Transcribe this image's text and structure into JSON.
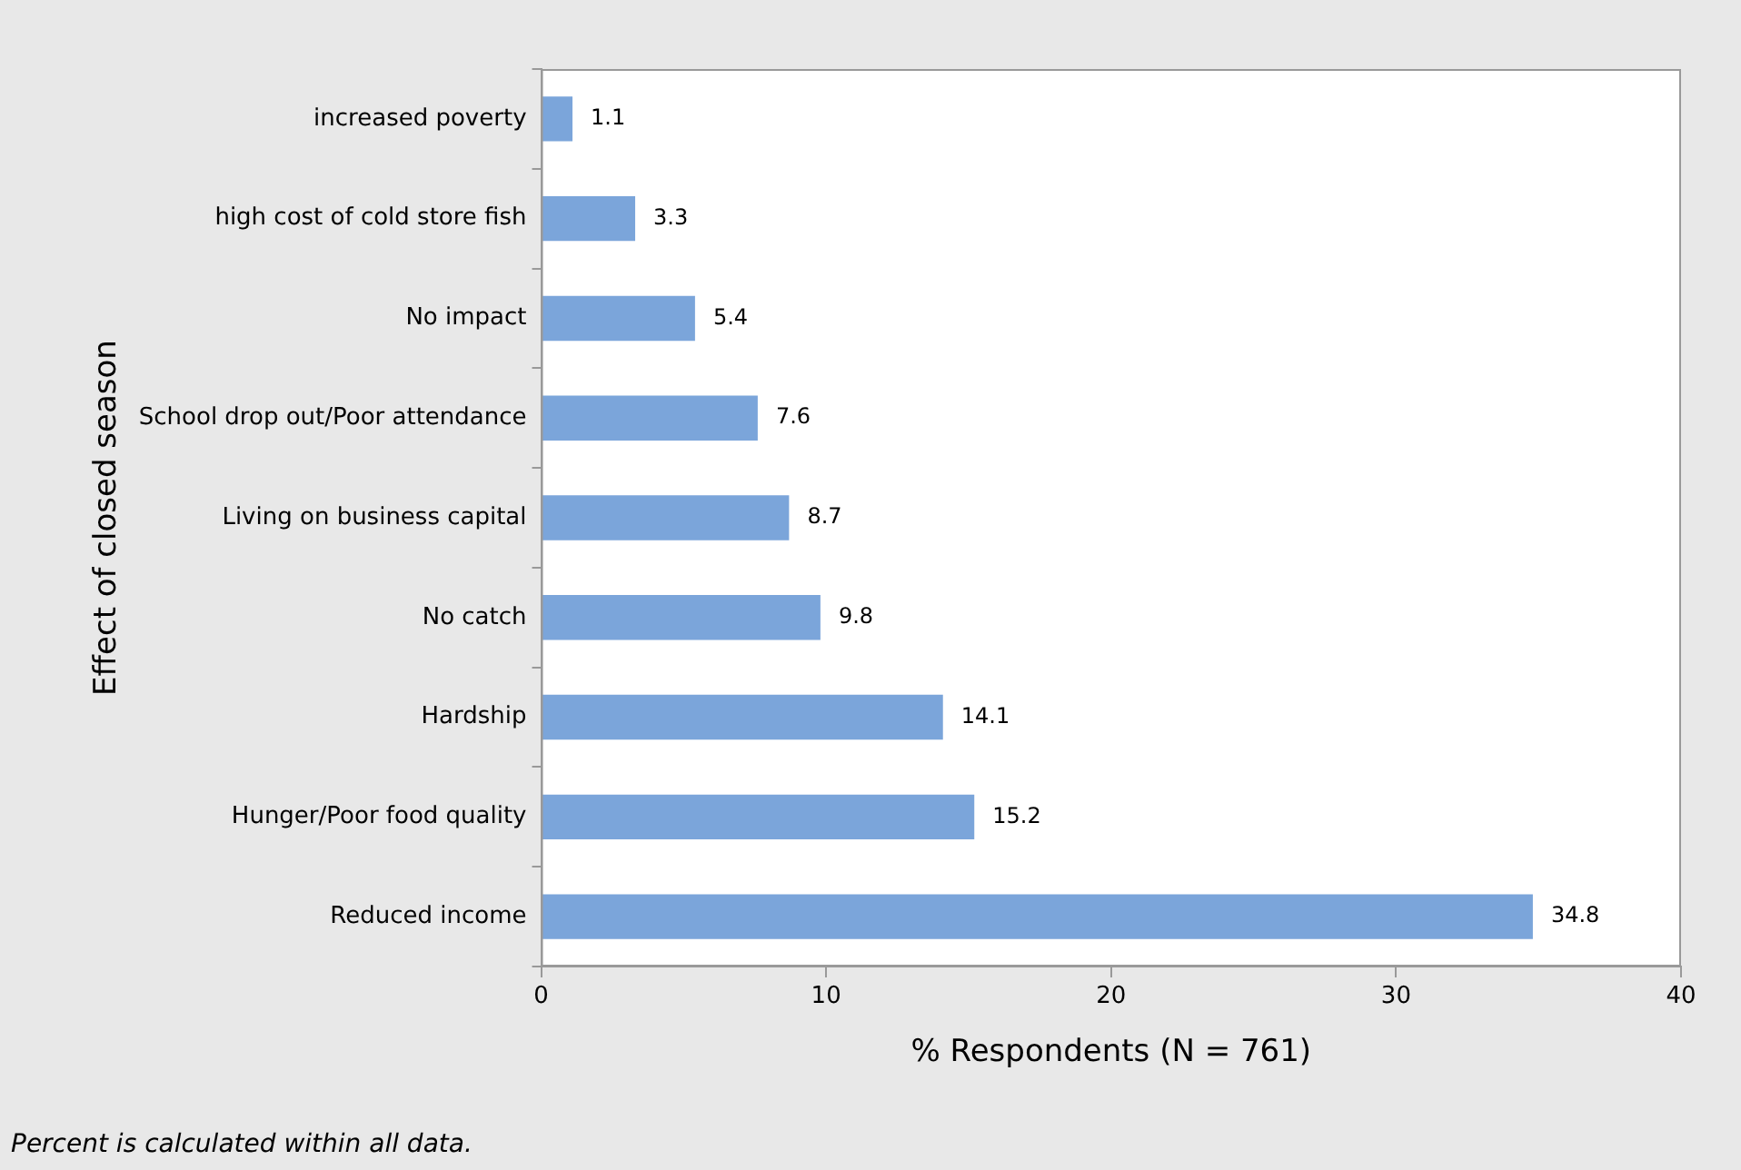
{
  "chart_data": {
    "type": "bar",
    "orientation": "horizontal",
    "xlabel": "% Respondents (N = 761)",
    "ylabel": "Effect of closed season",
    "categories": [
      "increased poverty",
      "high cost of cold store fish",
      "No impact",
      "School drop out/Poor attendance",
      "Living on business capital",
      "No catch",
      "Hardship",
      "Hunger/Poor food quality",
      "Reduced income"
    ],
    "values": [
      1.1,
      3.3,
      5.4,
      7.6,
      8.7,
      9.8,
      14.1,
      15.2,
      34.8
    ],
    "color": "#7ba5da",
    "xlim": [
      0,
      40
    ],
    "xticks": [
      0,
      10,
      20,
      30,
      40
    ],
    "data_labels": true,
    "legend": false,
    "annotations": [
      "Percent is calculated within all data."
    ]
  }
}
